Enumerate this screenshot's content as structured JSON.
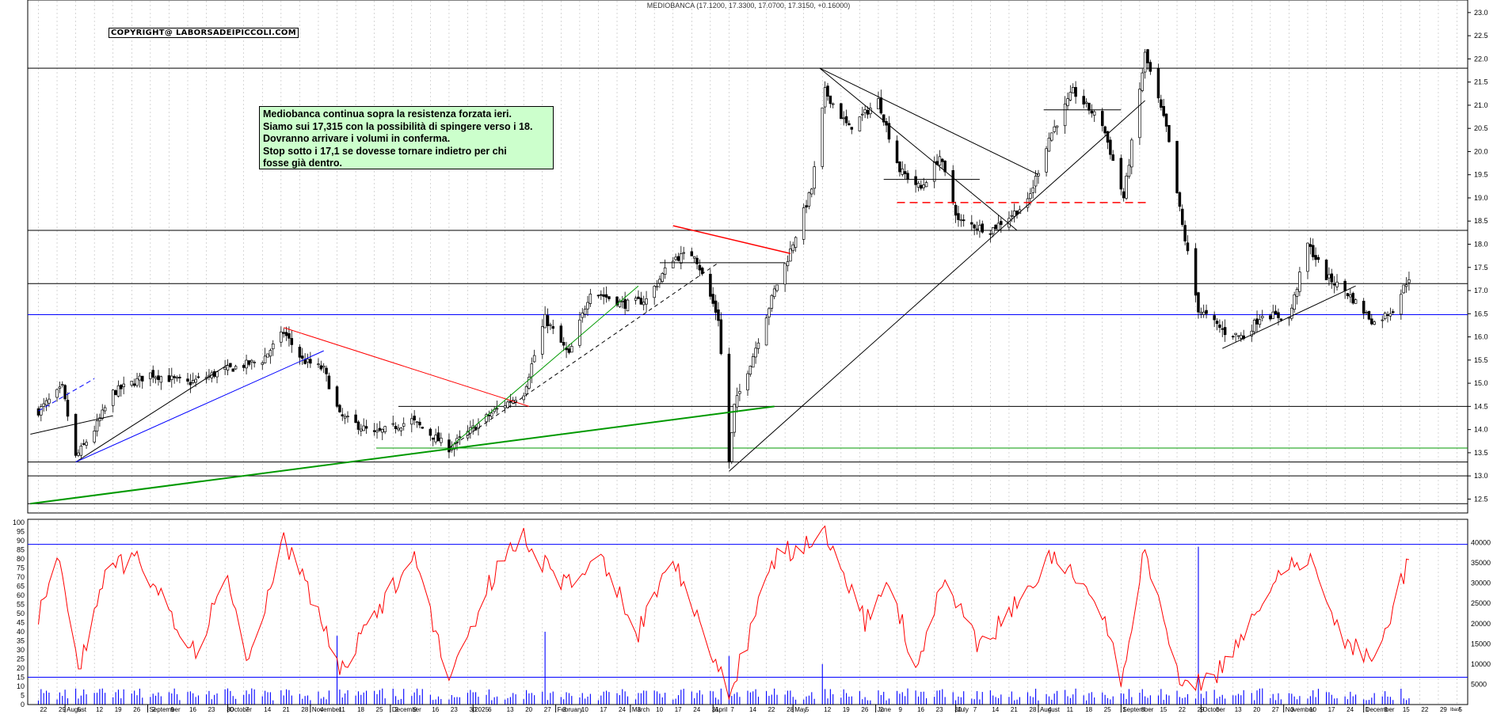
{
  "header": {
    "title": "MEDIOBANCA (17.1200, 17.3300, 17.0700, 17.3150, +0.16000)",
    "copyright": "COPYRIGHT@ LABORSADEIPICCOLI.COM"
  },
  "note": {
    "lines": [
      "Mediobanca continua sopra la resistenza forzata ieri.",
      "Siamo sui 17,315 con la possibilità di spingere verso i 18.",
      "Dovranno arrivare i volumi in conferma.",
      "Stop sotto i 17,1 se dovesse tornare indietro per chi",
      "fosse già dentro."
    ]
  },
  "colors": {
    "price": "#000000",
    "rsi": "#ff0000",
    "volume": "#0000ff",
    "trend_blue": "#0000ff",
    "trend_red": "#ff0000",
    "trend_green": "#009900",
    "note_bg": "#ccffcc"
  },
  "chart_data": [
    {
      "type": "candlestick",
      "panel": "price",
      "ylim": [
        12.2,
        23.1
      ],
      "y_ticks": [
        "23.0",
        "22.5",
        "22.0",
        "21.5",
        "21.0",
        "20.5",
        "20.0",
        "19.5",
        "19.0",
        "18.5",
        "18.0",
        "17.5",
        "17.0",
        "16.5",
        "16.0",
        "15.5",
        "15.0",
        "14.5",
        "14.0",
        "13.5",
        "13.0",
        "12.5"
      ],
      "key_points": [
        {
          "date": "2024-07-22",
          "close": 14.4
        },
        {
          "date": "2024-07-31",
          "close": 14.9
        },
        {
          "date": "2024-08-05",
          "close": 13.4
        },
        {
          "date": "2024-08-12",
          "close": 14.0
        },
        {
          "date": "2024-08-19",
          "close": 14.8
        },
        {
          "date": "2024-09-02",
          "close": 15.2
        },
        {
          "date": "2024-09-16",
          "close": 15.0
        },
        {
          "date": "2024-10-01",
          "close": 15.3
        },
        {
          "date": "2024-10-14",
          "close": 15.5
        },
        {
          "date": "2024-10-22",
          "close": 16.1
        },
        {
          "date": "2024-10-29",
          "close": 15.5
        },
        {
          "date": "2024-11-06",
          "close": 15.3
        },
        {
          "date": "2024-11-12",
          "close": 14.3
        },
        {
          "date": "2024-11-25",
          "close": 13.9
        },
        {
          "date": "2024-12-09",
          "close": 14.2
        },
        {
          "date": "2024-12-23",
          "close": 13.6
        },
        {
          "date": "2025-01-09",
          "close": 14.4
        },
        {
          "date": "2025-01-20",
          "close": 14.8
        },
        {
          "date": "2025-01-28",
          "close": 16.4
        },
        {
          "date": "2025-02-06",
          "close": 15.6
        },
        {
          "date": "2025-02-14",
          "close": 17.0
        },
        {
          "date": "2025-02-27",
          "close": 16.7
        },
        {
          "date": "2025-03-07",
          "close": 16.8
        },
        {
          "date": "2025-03-17",
          "close": 17.7
        },
        {
          "date": "2025-03-25",
          "close": 17.8
        },
        {
          "date": "2025-04-03",
          "close": 16.4
        },
        {
          "date": "2025-04-07",
          "close": 13.3
        },
        {
          "date": "2025-04-09",
          "close": 14.5
        },
        {
          "date": "2025-04-16",
          "close": 15.6
        },
        {
          "date": "2025-04-24",
          "close": 17.0
        },
        {
          "date": "2025-04-29",
          "close": 17.7
        },
        {
          "date": "2025-05-08",
          "close": 19.2
        },
        {
          "date": "2025-05-13",
          "close": 21.3
        },
        {
          "date": "2025-05-22",
          "close": 20.5
        },
        {
          "date": "2025-06-02",
          "close": 21.1
        },
        {
          "date": "2025-06-10",
          "close": 19.6
        },
        {
          "date": "2025-06-18",
          "close": 19.2
        },
        {
          "date": "2025-06-25",
          "close": 19.9
        },
        {
          "date": "2025-07-02",
          "close": 18.5
        },
        {
          "date": "2025-07-14",
          "close": 18.3
        },
        {
          "date": "2025-07-28",
          "close": 18.9
        },
        {
          "date": "2025-08-05",
          "close": 20.3
        },
        {
          "date": "2025-08-14",
          "close": 21.3
        },
        {
          "date": "2025-08-25",
          "close": 20.6
        },
        {
          "date": "2025-09-02",
          "close": 19.0
        },
        {
          "date": "2025-09-10",
          "close": 22.1
        },
        {
          "date": "2025-09-18",
          "close": 20.5
        },
        {
          "date": "2025-09-24",
          "close": 18.4
        },
        {
          "date": "2025-09-30",
          "close": 16.6
        },
        {
          "date": "2025-10-10",
          "close": 16.1
        },
        {
          "date": "2025-10-17",
          "close": 16.0
        },
        {
          "date": "2025-10-24",
          "close": 16.5
        },
        {
          "date": "2025-11-03",
          "close": 16.4
        },
        {
          "date": "2025-11-10",
          "close": 18.0
        },
        {
          "date": "2025-11-17",
          "close": 17.3
        },
        {
          "date": "2025-11-24",
          "close": 17.0
        },
        {
          "date": "2025-12-05",
          "close": 16.3
        },
        {
          "date": "2025-12-12",
          "close": 16.6
        },
        {
          "date": "2025-12-18",
          "close": 17.3
        }
      ],
      "horizontal_levels": [
        {
          "y": 21.8,
          "color": "black"
        },
        {
          "y": 18.3,
          "color": "black"
        },
        {
          "y": 17.15,
          "color": "black"
        },
        {
          "y": 16.48,
          "color": "blue"
        },
        {
          "y": 14.5,
          "color": "black"
        },
        {
          "y": 13.6,
          "color": "green"
        },
        {
          "y": 13.3,
          "color": "black"
        },
        {
          "y": 13.0,
          "color": "black"
        },
        {
          "y": 12.4,
          "color": "black"
        }
      ]
    },
    {
      "type": "line",
      "panel": "oscillator",
      "ylim": [
        0,
        100
      ],
      "y_ticks": [
        "100",
        "95",
        "90",
        "85",
        "80",
        "75",
        "70",
        "65",
        "60",
        "55",
        "50",
        "45",
        "40",
        "35",
        "30",
        "25",
        "20",
        "15",
        "10",
        "5",
        "0"
      ],
      "reference_levels": [
        88,
        15
      ],
      "key_points": [
        {
          "date": "2024-07-22",
          "value": 50
        },
        {
          "date": "2024-07-30",
          "value": 82
        },
        {
          "date": "2024-08-06",
          "value": 18
        },
        {
          "date": "2024-08-16",
          "value": 70
        },
        {
          "date": "2024-08-27",
          "value": 82
        },
        {
          "date": "2024-09-12",
          "value": 45
        },
        {
          "date": "2024-09-20",
          "value": 28
        },
        {
          "date": "2024-09-30",
          "value": 72
        },
        {
          "date": "2024-10-09",
          "value": 20
        },
        {
          "date": "2024-10-22",
          "value": 92
        },
        {
          "date": "2024-11-06",
          "value": 42
        },
        {
          "date": "2024-11-12",
          "value": 18
        },
        {
          "date": "2024-11-26",
          "value": 50
        },
        {
          "date": "2024-12-10",
          "value": 82
        },
        {
          "date": "2024-12-23",
          "value": 15
        },
        {
          "date": "2025-01-09",
          "value": 72
        },
        {
          "date": "2025-01-20",
          "value": 92
        },
        {
          "date": "2025-02-03",
          "value": 65
        },
        {
          "date": "2025-02-18",
          "value": 82
        },
        {
          "date": "2025-03-04",
          "value": 40
        },
        {
          "date": "2025-03-17",
          "value": 82
        },
        {
          "date": "2025-03-31",
          "value": 30
        },
        {
          "date": "2025-04-07",
          "value": 5
        },
        {
          "date": "2025-04-24",
          "value": 80
        },
        {
          "date": "2025-05-13",
          "value": 95
        },
        {
          "date": "2025-05-28",
          "value": 45
        },
        {
          "date": "2025-06-06",
          "value": 68
        },
        {
          "date": "2025-06-16",
          "value": 20
        },
        {
          "date": "2025-06-27",
          "value": 72
        },
        {
          "date": "2025-07-10",
          "value": 30
        },
        {
          "date": "2025-07-23",
          "value": 55
        },
        {
          "date": "2025-08-07",
          "value": 85
        },
        {
          "date": "2025-08-25",
          "value": 50
        },
        {
          "date": "2025-09-01",
          "value": 12
        },
        {
          "date": "2025-09-10",
          "value": 85
        },
        {
          "date": "2025-09-24",
          "value": 10
        },
        {
          "date": "2025-10-06",
          "value": 15
        },
        {
          "date": "2025-10-17",
          "value": 40
        },
        {
          "date": "2025-10-31",
          "value": 72
        },
        {
          "date": "2025-11-10",
          "value": 82
        },
        {
          "date": "2025-11-24",
          "value": 35
        },
        {
          "date": "2025-12-05",
          "value": 25
        },
        {
          "date": "2025-12-18",
          "value": 80
        }
      ]
    },
    {
      "type": "bar",
      "panel": "volume",
      "ylim": [
        0,
        45000
      ],
      "y_ticks": [
        "40000",
        "35000",
        "30000",
        "25000",
        "20000",
        "15000",
        "10000",
        "5000"
      ],
      "spikes": [
        {
          "date": "2024-11-11",
          "value": 17000
        },
        {
          "date": "2025-01-28",
          "value": 18000
        },
        {
          "date": "2025-04-07",
          "value": 12000
        },
        {
          "date": "2025-05-12",
          "value": 10000
        },
        {
          "date": "2025-09-30",
          "value": 39000
        }
      ],
      "typical_value": 2500
    }
  ],
  "x_axis": {
    "day_labels": [
      "22",
      "29",
      "5",
      "12",
      "19",
      "26",
      "2",
      "9",
      "16",
      "23",
      "30",
      "7",
      "14",
      "21",
      "28",
      "4",
      "11",
      "18",
      "25",
      "2",
      "9",
      "16",
      "23",
      "30",
      "6",
      "13",
      "20",
      "27",
      "3",
      "10",
      "17",
      "24",
      "3",
      "10",
      "17",
      "24",
      "31",
      "7",
      "14",
      "22",
      "28",
      "5",
      "12",
      "19",
      "26",
      "2",
      "9",
      "16",
      "23",
      "30",
      "7",
      "14",
      "21",
      "28",
      "4",
      "11",
      "18",
      "25",
      "1",
      "8",
      "15",
      "22",
      "29",
      "6",
      "13",
      "20",
      "27",
      "3",
      "10",
      "17",
      "24",
      "1",
      "8",
      "15",
      "22",
      "29",
      "5"
    ],
    "month_labels": [
      "August",
      "September",
      "October",
      "November",
      "December",
      "2025",
      "February",
      "March",
      "April",
      "May",
      "June",
      "July",
      "August",
      "September",
      "October",
      "November",
      "December"
    ],
    "corner_label": "Ibas!"
  }
}
